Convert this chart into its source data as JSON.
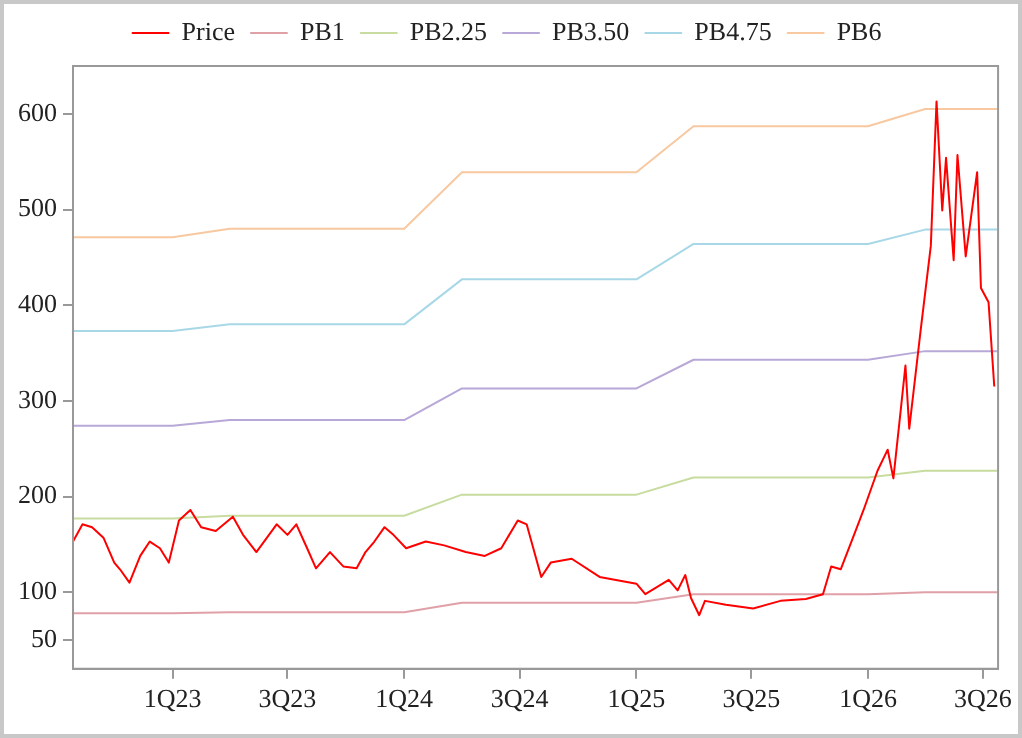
{
  "chart_data": {
    "type": "line",
    "legend": "top",
    "grid": false,
    "marker": "none",
    "line_style": "solid",
    "xlim": [
      "2022-07-28",
      "2026-07-25"
    ],
    "xticks": [
      {
        "value": "2023-01-01",
        "label": "1Q23"
      },
      {
        "value": "2023-07-01",
        "label": "3Q23"
      },
      {
        "value": "2024-01-01",
        "label": "1Q24"
      },
      {
        "value": "2024-07-01",
        "label": "3Q24"
      },
      {
        "value": "2025-01-01",
        "label": "1Q25"
      },
      {
        "value": "2025-07-01",
        "label": "3Q25"
      },
      {
        "value": "2026-01-01",
        "label": "1Q26"
      },
      {
        "value": "2026-07-01",
        "label": "3Q26"
      }
    ],
    "ylim": [
      20,
      650
    ],
    "yticks": [
      50,
      100,
      200,
      300,
      400,
      500,
      600
    ],
    "series": [
      {
        "name": "Price",
        "color": "#ff0000",
        "x": [
          "2022-07-28",
          "2022-08-12",
          "2022-08-27",
          "2022-09-14",
          "2022-10-01",
          "2022-10-10",
          "2022-10-25",
          "2022-11-11",
          "2022-11-26",
          "2022-12-12",
          "2022-12-26",
          "2023-01-11",
          "2023-01-29",
          "2023-02-15",
          "2023-03-10",
          "2023-04-06",
          "2023-04-22",
          "2023-05-13",
          "2023-06-14",
          "2023-07-01",
          "2023-07-15",
          "2023-08-01",
          "2023-08-15",
          "2023-09-06",
          "2023-09-27",
          "2023-10-18",
          "2023-11-01",
          "2023-11-15",
          "2023-12-01",
          "2023-12-15",
          "2024-01-04",
          "2024-02-04",
          "2024-03-04",
          "2024-04-07",
          "2024-05-07",
          "2024-06-02",
          "2024-06-28",
          "2024-07-12",
          "2024-08-04",
          "2024-08-19",
          "2024-09-21",
          "2024-11-04",
          "2025-01-01",
          "2025-01-15",
          "2025-02-21",
          "2025-03-07",
          "2025-03-19",
          "2025-03-28",
          "2025-04-10",
          "2025-04-19",
          "2025-05-22",
          "2025-07-04",
          "2025-08-16",
          "2025-09-25",
          "2025-10-22",
          "2025-11-04",
          "2025-11-19",
          "2025-12-10",
          "2025-12-25",
          "2026-01-16",
          "2026-02-01",
          "2026-02-10",
          "2026-02-22",
          "2026-03-01",
          "2026-03-07",
          "2026-03-25",
          "2026-04-10",
          "2026-04-19",
          "2026-04-28",
          "2026-05-04",
          "2026-05-16",
          "2026-05-22",
          "2026-06-04",
          "2026-06-22",
          "2026-06-28",
          "2026-07-10",
          "2026-07-19"
        ],
        "values": [
          153,
          171,
          168,
          157,
          131,
          124,
          110,
          138,
          153,
          146,
          131,
          175,
          186,
          168,
          164,
          179,
          160,
          142,
          171,
          160,
          171,
          146,
          125,
          142,
          127,
          125,
          142,
          153,
          168,
          160,
          146,
          153,
          149,
          142,
          138,
          146,
          175,
          171,
          116,
          131,
          135,
          116,
          109,
          98,
          113,
          102,
          118,
          94,
          76,
          91,
          87,
          83,
          91,
          93,
          98,
          127,
          124,
          160,
          186,
          227,
          249,
          219,
          293,
          337,
          271,
          374,
          462,
          613,
          499,
          554,
          447,
          557,
          451,
          539,
          418,
          403,
          315
        ]
      },
      {
        "name": "PB1",
        "color": "#e0a0a8",
        "x": [
          "2022-07-28",
          "2023-01-01",
          "2023-04-01",
          "2024-01-01",
          "2024-04-01",
          "2025-01-01",
          "2025-04-01",
          "2026-01-01",
          "2026-04-01",
          "2026-07-25"
        ],
        "values": [
          78,
          78,
          79,
          79,
          89,
          89,
          98,
          98,
          100,
          100
        ]
      },
      {
        "name": "PB2.25",
        "color": "#c8dca0",
        "x": [
          "2022-07-28",
          "2023-01-01",
          "2023-04-01",
          "2024-01-01",
          "2024-04-01",
          "2025-01-01",
          "2025-04-01",
          "2026-01-01",
          "2026-04-01",
          "2026-07-25"
        ],
        "values": [
          177,
          177,
          180,
          180,
          202,
          202,
          220,
          220,
          227,
          227
        ]
      },
      {
        "name": "PB3.50",
        "color": "#b8a8d8",
        "x": [
          "2022-07-28",
          "2023-01-01",
          "2023-04-01",
          "2024-01-01",
          "2024-04-01",
          "2025-01-01",
          "2025-04-01",
          "2026-01-01",
          "2026-04-01",
          "2026-07-25"
        ],
        "values": [
          274,
          274,
          280,
          280,
          313,
          313,
          343,
          343,
          352,
          352
        ]
      },
      {
        "name": "PB4.75",
        "color": "#a8d8e8",
        "x": [
          "2022-07-28",
          "2023-01-01",
          "2023-04-01",
          "2024-01-01",
          "2024-04-01",
          "2025-01-01",
          "2025-04-01",
          "2026-01-01",
          "2026-04-01",
          "2026-07-25"
        ],
        "values": [
          373,
          373,
          380,
          380,
          427,
          427,
          464,
          464,
          479,
          479
        ]
      },
      {
        "name": "PB6",
        "color": "#f8c8a0",
        "x": [
          "2022-07-28",
          "2023-01-01",
          "2023-04-01",
          "2024-01-01",
          "2024-04-01",
          "2025-01-01",
          "2025-04-01",
          "2026-01-01",
          "2026-04-01",
          "2026-07-25"
        ],
        "values": [
          471,
          471,
          480,
          480,
          539,
          539,
          587,
          587,
          605,
          605
        ]
      }
    ]
  }
}
